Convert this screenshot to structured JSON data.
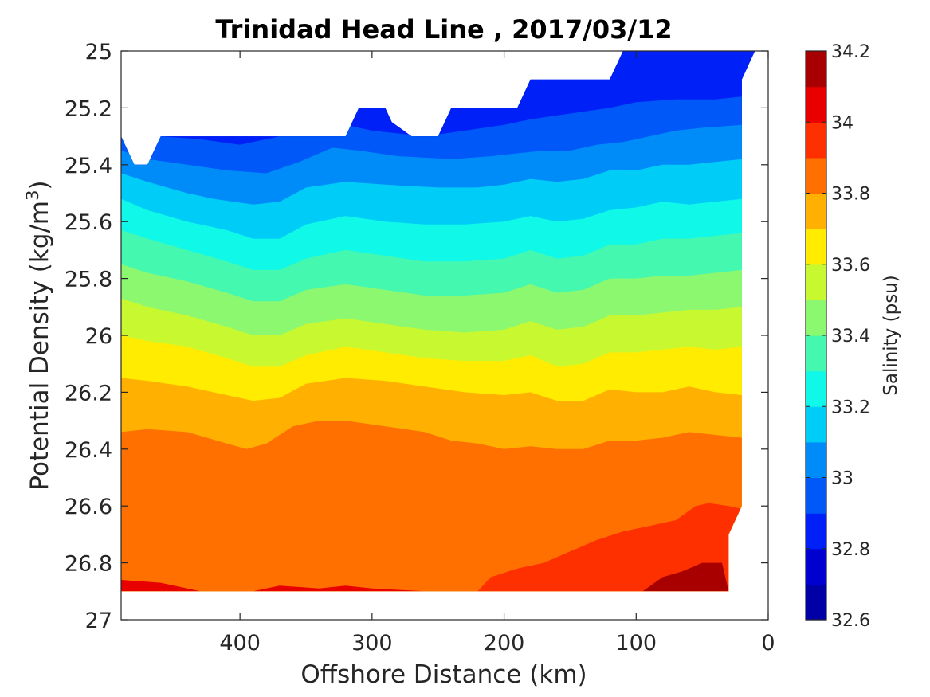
{
  "chart_data": {
    "type": "heatmap",
    "subtype": "filled-contour",
    "title": "Trinidad Head Line , 2017/03/12",
    "xlabel": "Offshore Distance (km)",
    "ylabel": "Potential Density (kg/m",
    "ylabel_sup": "3",
    "ylabel_close": ")",
    "x_reversed": true,
    "y_reversed": true,
    "xlim": [
      490,
      0
    ],
    "ylim": [
      25,
      27
    ],
    "x_ticks": [
      400,
      300,
      200,
      100,
      0
    ],
    "x_tick_labels": [
      "400",
      "300",
      "200",
      "100",
      "0"
    ],
    "y_ticks": [
      25,
      25.2,
      25.4,
      25.6,
      25.8,
      26,
      26.2,
      26.4,
      26.6,
      26.8,
      27
    ],
    "y_tick_labels": [
      "25",
      "25.2",
      "25.4",
      "25.6",
      "25.8",
      "26",
      "26.2",
      "26.4",
      "26.6",
      "26.8",
      "27"
    ],
    "colorbar": {
      "label": "Salinity (psu)",
      "range": [
        32.6,
        34.2
      ],
      "tick_values": [
        34.2,
        34,
        33.8,
        33.6,
        33.4,
        33.2,
        33,
        32.8,
        32.6
      ],
      "tick_labels": [
        "34.2",
        "34",
        "33.8",
        "33.6",
        "33.4",
        "33.2",
        "33",
        "32.8",
        "32.6"
      ],
      "levels": [
        {
          "min": 32.6,
          "max": 32.7,
          "color": "#0000a6"
        },
        {
          "min": 32.7,
          "max": 32.8,
          "color": "#0000d0"
        },
        {
          "min": 32.8,
          "max": 32.9,
          "color": "#0020f8"
        },
        {
          "min": 32.9,
          "max": 33.0,
          "color": "#0058f8"
        },
        {
          "min": 33.0,
          "max": 33.1,
          "color": "#008cf8"
        },
        {
          "min": 33.1,
          "max": 33.2,
          "color": "#00ccf8"
        },
        {
          "min": 33.2,
          "max": 33.3,
          "color": "#10f8e8"
        },
        {
          "min": 33.3,
          "max": 33.4,
          "color": "#44f8b0"
        },
        {
          "min": 33.4,
          "max": 33.5,
          "color": "#8cf870"
        },
        {
          "min": 33.5,
          "max": 33.6,
          "color": "#c8f830"
        },
        {
          "min": 33.6,
          "max": 33.7,
          "color": "#ffec00"
        },
        {
          "min": 33.7,
          "max": 33.8,
          "color": "#ffb000"
        },
        {
          "min": 33.8,
          "max": 33.9,
          "color": "#ff7000"
        },
        {
          "min": 33.9,
          "max": 34.0,
          "color": "#ff3000"
        },
        {
          "min": 34.0,
          "max": 34.1,
          "color": "#e80000"
        },
        {
          "min": 34.1,
          "max": 34.2,
          "color": "#a80000"
        }
      ]
    },
    "data_x_range": [
      490,
      20
    ],
    "data_top": [
      [
        490,
        25.3
      ],
      [
        480,
        25.4
      ],
      [
        470,
        25.4
      ],
      [
        460,
        25.3
      ],
      [
        320,
        25.3
      ],
      [
        310,
        25.2
      ],
      [
        290,
        25.2
      ],
      [
        285,
        25.25
      ],
      [
        270,
        25.3
      ],
      [
        250,
        25.3
      ],
      [
        240,
        25.2
      ],
      [
        190,
        25.2
      ],
      [
        180,
        25.1
      ],
      [
        120,
        25.1
      ],
      [
        110,
        25.0
      ],
      [
        10,
        25.0
      ],
      [
        20,
        25.1
      ],
      [
        20,
        25.2
      ]
    ],
    "data_bottom": [
      [
        490,
        26.9
      ],
      [
        30,
        26.9
      ],
      [
        30,
        26.7
      ],
      [
        20,
        26.6
      ]
    ],
    "contours": [
      {
        "salinity": 32.85,
        "points": [
          [
            490,
            25.25
          ],
          [
            120,
            25.05
          ],
          [
            20,
            25.05
          ]
        ]
      },
      {
        "salinity": 32.95,
        "points": [
          [
            490,
            25.28
          ],
          [
            460,
            25.3
          ],
          [
            430,
            25.31
          ],
          [
            400,
            25.33
          ],
          [
            370,
            25.3
          ],
          [
            340,
            25.28
          ],
          [
            320,
            25.26
          ],
          [
            300,
            25.28
          ],
          [
            260,
            25.3
          ],
          [
            230,
            25.28
          ],
          [
            200,
            25.26
          ],
          [
            180,
            25.24
          ],
          [
            150,
            25.22
          ],
          [
            120,
            25.2
          ],
          [
            100,
            25.18
          ],
          [
            70,
            25.17
          ],
          [
            40,
            25.17
          ],
          [
            20,
            25.16
          ]
        ]
      },
      {
        "salinity": 33.05,
        "points": [
          [
            490,
            25.35
          ],
          [
            470,
            25.38
          ],
          [
            440,
            25.4
          ],
          [
            410,
            25.42
          ],
          [
            380,
            25.43
          ],
          [
            355,
            25.39
          ],
          [
            330,
            25.34
          ],
          [
            310,
            25.35
          ],
          [
            280,
            25.37
          ],
          [
            240,
            25.38
          ],
          [
            210,
            25.37
          ],
          [
            190,
            25.36
          ],
          [
            170,
            25.35
          ],
          [
            150,
            25.35
          ],
          [
            130,
            25.33
          ],
          [
            110,
            25.32
          ],
          [
            90,
            25.3
          ],
          [
            70,
            25.28
          ],
          [
            50,
            25.27
          ],
          [
            20,
            25.26
          ]
        ]
      },
      {
        "salinity": 33.15,
        "points": [
          [
            490,
            25.43
          ],
          [
            470,
            25.46
          ],
          [
            440,
            25.5
          ],
          [
            420,
            25.52
          ],
          [
            390,
            25.54
          ],
          [
            370,
            25.53
          ],
          [
            350,
            25.48
          ],
          [
            320,
            25.46
          ],
          [
            290,
            25.47
          ],
          [
            250,
            25.48
          ],
          [
            220,
            25.48
          ],
          [
            200,
            25.47
          ],
          [
            180,
            25.45
          ],
          [
            160,
            25.46
          ],
          [
            140,
            25.45
          ],
          [
            120,
            25.42
          ],
          [
            100,
            25.42
          ],
          [
            80,
            25.4
          ],
          [
            60,
            25.4
          ],
          [
            40,
            25.39
          ],
          [
            20,
            25.38
          ]
        ]
      },
      {
        "salinity": 33.25,
        "points": [
          [
            490,
            25.52
          ],
          [
            470,
            25.56
          ],
          [
            440,
            25.6
          ],
          [
            410,
            25.63
          ],
          [
            390,
            25.66
          ],
          [
            370,
            25.66
          ],
          [
            350,
            25.61
          ],
          [
            320,
            25.58
          ],
          [
            290,
            25.6
          ],
          [
            260,
            25.61
          ],
          [
            230,
            25.61
          ],
          [
            200,
            25.6
          ],
          [
            180,
            25.58
          ],
          [
            160,
            25.6
          ],
          [
            140,
            25.59
          ],
          [
            120,
            25.56
          ],
          [
            100,
            25.55
          ],
          [
            80,
            25.53
          ],
          [
            60,
            25.54
          ],
          [
            40,
            25.53
          ],
          [
            20,
            25.52
          ]
        ]
      },
      {
        "salinity": 33.35,
        "points": [
          [
            490,
            25.63
          ],
          [
            470,
            25.66
          ],
          [
            440,
            25.7
          ],
          [
            410,
            25.74
          ],
          [
            390,
            25.77
          ],
          [
            370,
            25.77
          ],
          [
            350,
            25.73
          ],
          [
            320,
            25.7
          ],
          [
            290,
            25.72
          ],
          [
            260,
            25.74
          ],
          [
            230,
            25.74
          ],
          [
            200,
            25.73
          ],
          [
            180,
            25.7
          ],
          [
            160,
            25.73
          ],
          [
            140,
            25.72
          ],
          [
            120,
            25.68
          ],
          [
            100,
            25.68
          ],
          [
            80,
            25.66
          ],
          [
            60,
            25.66
          ],
          [
            40,
            25.65
          ],
          [
            20,
            25.64
          ]
        ]
      },
      {
        "salinity": 33.45,
        "points": [
          [
            490,
            25.75
          ],
          [
            470,
            25.78
          ],
          [
            440,
            25.81
          ],
          [
            410,
            25.85
          ],
          [
            390,
            25.88
          ],
          [
            370,
            25.88
          ],
          [
            350,
            25.84
          ],
          [
            320,
            25.82
          ],
          [
            290,
            25.84
          ],
          [
            260,
            25.86
          ],
          [
            230,
            25.86
          ],
          [
            200,
            25.85
          ],
          [
            180,
            25.82
          ],
          [
            160,
            25.85
          ],
          [
            140,
            25.84
          ],
          [
            120,
            25.8
          ],
          [
            100,
            25.8
          ],
          [
            80,
            25.79
          ],
          [
            60,
            25.79
          ],
          [
            40,
            25.78
          ],
          [
            20,
            25.77
          ]
        ]
      },
      {
        "salinity": 33.55,
        "points": [
          [
            490,
            25.87
          ],
          [
            470,
            25.9
          ],
          [
            440,
            25.93
          ],
          [
            410,
            25.97
          ],
          [
            390,
            26.0
          ],
          [
            370,
            26.0
          ],
          [
            350,
            25.96
          ],
          [
            320,
            25.94
          ],
          [
            290,
            25.96
          ],
          [
            260,
            25.98
          ],
          [
            230,
            25.99
          ],
          [
            200,
            25.98
          ],
          [
            180,
            25.95
          ],
          [
            160,
            25.98
          ],
          [
            140,
            25.97
          ],
          [
            120,
            25.93
          ],
          [
            100,
            25.93
          ],
          [
            80,
            25.92
          ],
          [
            60,
            25.91
          ],
          [
            40,
            25.91
          ],
          [
            20,
            25.9
          ]
        ]
      },
      {
        "salinity": 33.65,
        "points": [
          [
            490,
            26.0
          ],
          [
            470,
            26.02
          ],
          [
            440,
            26.04
          ],
          [
            410,
            26.08
          ],
          [
            390,
            26.11
          ],
          [
            370,
            26.11
          ],
          [
            350,
            26.07
          ],
          [
            320,
            26.04
          ],
          [
            290,
            26.06
          ],
          [
            260,
            26.08
          ],
          [
            230,
            26.09
          ],
          [
            200,
            26.09
          ],
          [
            180,
            26.07
          ],
          [
            160,
            26.11
          ],
          [
            140,
            26.1
          ],
          [
            120,
            26.06
          ],
          [
            100,
            26.06
          ],
          [
            80,
            26.05
          ],
          [
            60,
            26.04
          ],
          [
            40,
            26.05
          ],
          [
            20,
            26.04
          ]
        ]
      },
      {
        "salinity": 33.75,
        "points": [
          [
            490,
            26.15
          ],
          [
            470,
            26.16
          ],
          [
            440,
            26.18
          ],
          [
            410,
            26.21
          ],
          [
            390,
            26.23
          ],
          [
            370,
            26.22
          ],
          [
            350,
            26.17
          ],
          [
            320,
            26.15
          ],
          [
            290,
            26.16
          ],
          [
            260,
            26.18
          ],
          [
            230,
            26.2
          ],
          [
            200,
            26.21
          ],
          [
            180,
            26.2
          ],
          [
            160,
            26.23
          ],
          [
            140,
            26.23
          ],
          [
            120,
            26.19
          ],
          [
            100,
            26.2
          ],
          [
            80,
            26.2
          ],
          [
            60,
            26.18
          ],
          [
            40,
            26.2
          ],
          [
            20,
            26.21
          ]
        ]
      },
      {
        "salinity": 33.85,
        "points": [
          [
            490,
            26.34
          ],
          [
            470,
            26.33
          ],
          [
            440,
            26.34
          ],
          [
            410,
            26.38
          ],
          [
            395,
            26.4
          ],
          [
            380,
            26.38
          ],
          [
            360,
            26.32
          ],
          [
            340,
            26.3
          ],
          [
            320,
            26.3
          ],
          [
            290,
            26.32
          ],
          [
            260,
            26.34
          ],
          [
            240,
            26.37
          ],
          [
            220,
            26.38
          ],
          [
            200,
            26.4
          ],
          [
            180,
            26.39
          ],
          [
            160,
            26.4
          ],
          [
            140,
            26.4
          ],
          [
            120,
            26.37
          ],
          [
            100,
            26.37
          ],
          [
            80,
            26.36
          ],
          [
            60,
            26.34
          ],
          [
            40,
            26.35
          ],
          [
            20,
            26.36
          ]
        ]
      },
      {
        "salinity": 33.95,
        "points": [
          [
            490,
            26.9
          ],
          [
            220,
            26.9
          ],
          [
            210,
            26.85
          ],
          [
            190,
            26.82
          ],
          [
            170,
            26.8
          ],
          [
            150,
            26.76
          ],
          [
            130,
            26.72
          ],
          [
            110,
            26.69
          ],
          [
            90,
            26.67
          ],
          [
            70,
            26.65
          ],
          [
            55,
            26.6
          ],
          [
            45,
            26.59
          ],
          [
            30,
            26.6
          ],
          [
            20,
            26.61
          ]
        ]
      },
      {
        "salinity": 34.05,
        "points": [
          [
            490,
            26.86
          ],
          [
            460,
            26.87
          ],
          [
            430,
            26.9
          ],
          [
            390,
            26.9
          ],
          [
            370,
            26.88
          ],
          [
            340,
            26.89
          ],
          [
            320,
            26.88
          ],
          [
            300,
            26.89
          ],
          [
            260,
            26.9
          ],
          [
            230,
            26.9
          ]
        ]
      },
      {
        "salinity": 34.15,
        "points": [
          [
            95,
            26.9
          ],
          [
            80,
            26.85
          ],
          [
            65,
            26.83
          ],
          [
            50,
            26.8
          ],
          [
            35,
            26.8
          ],
          [
            30,
            26.9
          ]
        ]
      }
    ]
  }
}
